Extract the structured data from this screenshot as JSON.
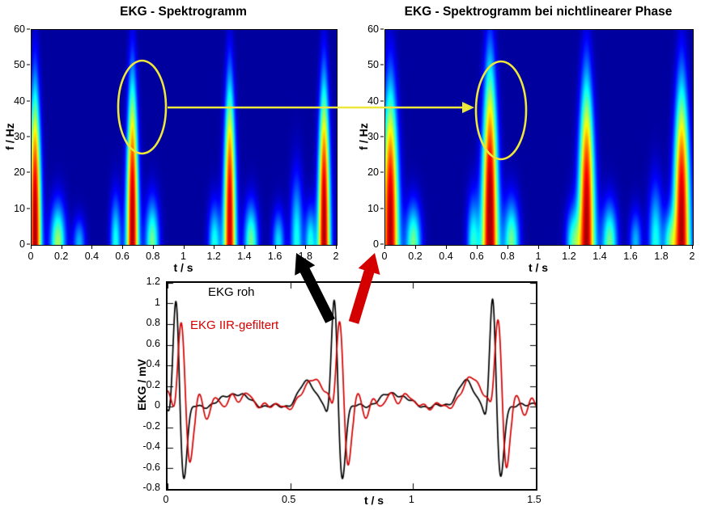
{
  "chart_data": [
    {
      "type": "heatmap",
      "title": "EKG - Spektrogramm",
      "xlabel": "t / s",
      "ylabel": "f / Hz",
      "xlim": [
        0,
        2
      ],
      "ylim": [
        0,
        60
      ],
      "xticks": [
        0,
        0.2,
        0.4,
        0.6,
        0.8,
        1,
        1.2,
        1.4,
        1.6,
        1.8,
        2
      ],
      "yticks": [
        0,
        10,
        20,
        30,
        40,
        50,
        60
      ],
      "colormap": "jet",
      "background_value": "dark-blue (zero energy)",
      "width_scale": 1.0,
      "beats": [
        {
          "t": 0.02,
          "a": 1.0,
          "fmax": 42
        },
        {
          "t": 0.66,
          "a": 1.0,
          "fmax": 44
        },
        {
          "t": 1.3,
          "a": 0.97,
          "fmax": 43
        },
        {
          "t": 1.92,
          "a": 1.0,
          "fmax": 43
        }
      ],
      "blobs": [
        {
          "t": 0.17,
          "f": 11,
          "a": 0.55,
          "w": 0.05
        },
        {
          "t": 0.31,
          "f": 7,
          "a": 0.3,
          "w": 0.04
        },
        {
          "t": 0.55,
          "f": 13,
          "a": 0.4,
          "w": 0.035
        },
        {
          "t": 0.79,
          "f": 12,
          "a": 0.5,
          "w": 0.045
        },
        {
          "t": 1.2,
          "f": 11,
          "a": 0.4,
          "w": 0.04
        },
        {
          "t": 1.44,
          "f": 11,
          "a": 0.5,
          "w": 0.045
        },
        {
          "t": 1.62,
          "f": 9,
          "a": 0.35,
          "w": 0.04
        },
        {
          "t": 1.74,
          "f": 18,
          "a": 0.4,
          "w": 0.04
        },
        {
          "t": 1.83,
          "f": 10,
          "a": 0.4,
          "w": 0.035
        }
      ]
    },
    {
      "type": "heatmap",
      "title": "EKG - Spektrogramm bei nichtlinearer Phase",
      "xlabel": "t / s",
      "ylabel": "f / Hz",
      "xlim": [
        0,
        2
      ],
      "ylim": [
        0,
        60
      ],
      "xticks": [
        0,
        0.2,
        0.4,
        0.6,
        0.8,
        1,
        1.2,
        1.4,
        1.6,
        1.8,
        2
      ],
      "yticks": [
        0,
        10,
        20,
        30,
        40,
        50,
        60
      ],
      "colormap": "jet",
      "background_value": "dark-blue (zero energy)",
      "width_scale": 1.35,
      "beats": [
        {
          "t": 0.03,
          "a": 1.0,
          "fmax": 42
        },
        {
          "t": 0.68,
          "a": 1.05,
          "fmax": 48
        },
        {
          "t": 1.31,
          "a": 1.0,
          "fmax": 44
        },
        {
          "t": 1.93,
          "a": 1.0,
          "fmax": 43
        }
      ],
      "blobs": [
        {
          "t": 0.18,
          "f": 11,
          "a": 0.5,
          "w": 0.05
        },
        {
          "t": 0.57,
          "f": 13,
          "a": 0.4,
          "w": 0.04
        },
        {
          "t": 0.82,
          "f": 12,
          "a": 0.5,
          "w": 0.05
        },
        {
          "t": 1.22,
          "f": 10,
          "a": 0.4,
          "w": 0.045
        },
        {
          "t": 1.46,
          "f": 11,
          "a": 0.5,
          "w": 0.05
        },
        {
          "t": 1.63,
          "f": 9,
          "a": 0.3,
          "w": 0.04
        },
        {
          "t": 1.76,
          "f": 16,
          "a": 0.4,
          "w": 0.045
        },
        {
          "t": 1.85,
          "f": 9,
          "a": 0.35,
          "w": 0.04
        }
      ]
    },
    {
      "type": "line",
      "title": "",
      "xlabel": "t / s",
      "ylabel": "EKG / mV",
      "xlim": [
        0,
        1.5
      ],
      "ylim": [
        -0.8,
        1.2
      ],
      "xticks": [
        0,
        0.5,
        1,
        1.5
      ],
      "yticks": [
        -0.8,
        -0.6,
        -0.4,
        -0.2,
        0,
        0.2,
        0.4,
        0.6,
        0.8,
        1,
        1.2
      ],
      "series": [
        {
          "name": "EKG roh",
          "color": "#000000",
          "beat_times": [
            0.035,
            0.68,
            1.325
          ],
          "delay": 0,
          "p_amp": 0.24,
          "p_off": 0.11,
          "p_w": 0.034,
          "q_amp": 0.13,
          "r_peak": 1.1,
          "r_w": 0.012,
          "s_amp": 0.72,
          "s_off": 0.03,
          "t_amp": 0.13,
          "t_off": 0.24,
          "ring": 0,
          "ring_f": 0,
          "ring_tau": 1,
          "noise": 0.015
        },
        {
          "name": "EKG IIR-gefiltert",
          "color": "#d40000",
          "beat_times": [
            0.035,
            0.68,
            1.325
          ],
          "delay": 0.022,
          "p_amp": 0.28,
          "p_off": 0.105,
          "p_w": 0.038,
          "q_amp": 0.1,
          "r_peak": 0.86,
          "r_w": 0.014,
          "s_amp": 0.62,
          "s_off": 0.032,
          "t_amp": 0.1,
          "t_off": 0.24,
          "ring": 0.13,
          "ring_f": 15,
          "ring_tau": 0.15,
          "noise": 0.02
        }
      ]
    }
  ],
  "annotations": {
    "highlight_color": "#ece73a",
    "raw_arrow_color": "#000000",
    "filtered_arrow_color": "#d40000",
    "left_highlight": {
      "t_range": [
        0.57,
        0.89
      ],
      "f_range": [
        25,
        51
      ]
    },
    "right_highlight": {
      "t_range": [
        0.6,
        0.93
      ],
      "f_range": [
        24,
        52
      ]
    }
  }
}
